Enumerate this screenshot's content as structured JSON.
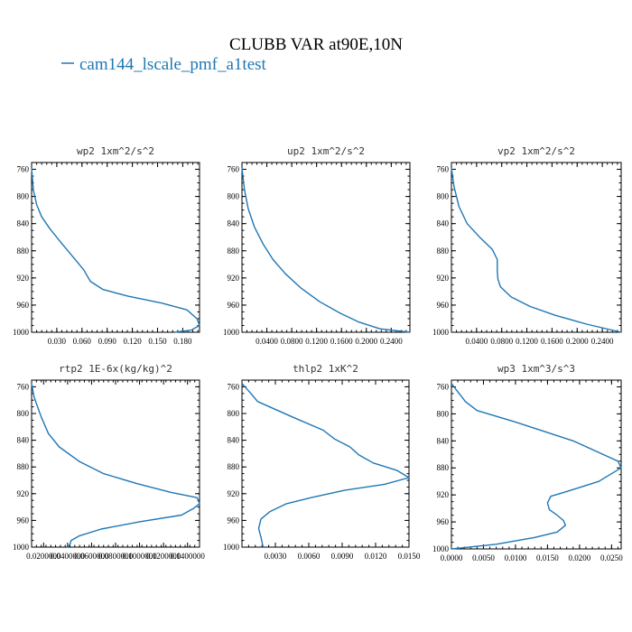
{
  "figure": {
    "title": "CLUBB VAR at90E,10N",
    "legend_label": "cam144_lscale_pmf_a1test",
    "line_color": "#1f77b4"
  },
  "chart_data": [
    {
      "type": "line",
      "title": "wp2  1xm^2/s^2",
      "xlim": [
        0,
        0.2
      ],
      "xticks": [
        0.03,
        0.06,
        0.09,
        0.12,
        0.15,
        0.18
      ],
      "xtick_labels": [
        "0.030",
        "0.060",
        "0.090",
        "0.120",
        "0.150",
        "0.180"
      ],
      "ylim": [
        1000,
        750
      ],
      "yticks": [
        760,
        800,
        840,
        880,
        920,
        960,
        1000
      ],
      "series": [
        {
          "name": "cam144_lscale_pmf_a1test",
          "x": [
            0.0,
            0.002,
            0.006,
            0.012,
            0.022,
            0.035,
            0.05,
            0.062,
            0.07,
            0.085,
            0.115,
            0.155,
            0.185,
            0.197,
            0.2,
            0.19,
            0.17
          ],
          "y": [
            758,
            790,
            812,
            830,
            848,
            868,
            890,
            908,
            925,
            937,
            947,
            957,
            967,
            980,
            990,
            997,
            1000
          ]
        }
      ]
    },
    {
      "type": "line",
      "title": "up2  1xm^2/s^2",
      "xlim": [
        0,
        0.27
      ],
      "xticks": [
        0.04,
        0.08,
        0.12,
        0.16,
        0.2,
        0.24
      ],
      "xtick_labels": [
        "0.0400",
        "0.0800",
        "0.1200",
        "0.1600",
        "0.2000",
        "0.2400"
      ],
      "ylim": [
        1000,
        750
      ],
      "yticks": [
        760,
        800,
        840,
        880,
        920,
        960,
        1000
      ],
      "series": [
        {
          "name": "cam144_lscale_pmf_a1test",
          "x": [
            0.0,
            0.004,
            0.01,
            0.02,
            0.034,
            0.05,
            0.07,
            0.095,
            0.125,
            0.158,
            0.188,
            0.222,
            0.27
          ],
          "y": [
            758,
            790,
            818,
            845,
            870,
            893,
            914,
            935,
            955,
            972,
            985,
            995,
            1000
          ]
        }
      ]
    },
    {
      "type": "line",
      "title": "vp2  1xm^2/s^2",
      "xlim": [
        0,
        0.27
      ],
      "xticks": [
        0.04,
        0.08,
        0.12,
        0.16,
        0.2,
        0.24
      ],
      "xtick_labels": [
        "0.0400",
        "0.0800",
        "0.1200",
        "0.1600",
        "0.2000",
        "0.2400"
      ],
      "ylim": [
        1000,
        750
      ],
      "yticks": [
        760,
        800,
        840,
        880,
        920,
        960,
        1000
      ],
      "series": [
        {
          "name": "cam144_lscale_pmf_a1test",
          "x": [
            0.0,
            0.004,
            0.012,
            0.025,
            0.045,
            0.065,
            0.073,
            0.073,
            0.074,
            0.078,
            0.095,
            0.125,
            0.165,
            0.215,
            0.27
          ],
          "y": [
            758,
            785,
            815,
            840,
            860,
            878,
            893,
            910,
            922,
            933,
            948,
            962,
            975,
            988,
            1000
          ]
        }
      ]
    },
    {
      "type": "line",
      "title": "rtp2  1E-6x(kg/kg)^2",
      "xlim": [
        0.01,
        0.15
      ],
      "xticks": [
        0.02,
        0.04,
        0.06,
        0.08,
        0.1,
        0.12,
        0.14
      ],
      "xtick_labels": [
        "0.0200000",
        "0.0400000",
        "0.0600000",
        "0.0800000",
        "0.1000000",
        "0.1200000",
        "0.1400000"
      ],
      "ylim": [
        1000,
        750
      ],
      "yticks": [
        760,
        800,
        840,
        880,
        920,
        960,
        1000
      ],
      "series": [
        {
          "name": "cam144_lscale_pmf_a1test",
          "x": [
            0.01,
            0.012,
            0.018,
            0.024,
            0.033,
            0.05,
            0.07,
            0.098,
            0.126,
            0.148,
            0.15,
            0.145,
            0.135,
            0.1,
            0.068,
            0.05,
            0.043,
            0.042,
            0.04
          ],
          "y": [
            755,
            775,
            805,
            830,
            850,
            872,
            890,
            905,
            918,
            926,
            935,
            942,
            952,
            962,
            973,
            983,
            990,
            996,
            1000
          ]
        }
      ]
    },
    {
      "type": "line",
      "title": "thlp2  1xK^2",
      "xlim": [
        0,
        0.015
      ],
      "xticks": [
        0.003,
        0.006,
        0.009,
        0.012,
        0.015
      ],
      "xtick_labels": [
        "0.0030",
        "0.0060",
        "0.0090",
        "0.0120",
        "0.0150"
      ],
      "ylim": [
        1000,
        750
      ],
      "yticks": [
        760,
        800,
        840,
        880,
        920,
        960,
        1000
      ],
      "series": [
        {
          "name": "cam144_lscale_pmf_a1test",
          "x": [
            0.0,
            0.0008,
            0.0014,
            0.0045,
            0.0073,
            0.0083,
            0.0097,
            0.0105,
            0.0118,
            0.0139,
            0.015,
            0.0128,
            0.0092,
            0.0062,
            0.004,
            0.0025,
            0.0017,
            0.0015,
            0.0017,
            0.0019
          ],
          "y": [
            755,
            770,
            782,
            805,
            825,
            838,
            850,
            862,
            874,
            885,
            896,
            906,
            915,
            926,
            935,
            947,
            958,
            972,
            985,
            1000
          ]
        }
      ]
    },
    {
      "type": "line",
      "title": "wp3  1xm^3/s^3",
      "xlim": [
        0,
        0.0265
      ],
      "xticks": [
        0.0,
        0.005,
        0.01,
        0.015,
        0.02,
        0.025
      ],
      "xtick_labels": [
        "0.0000",
        "0.0050",
        "0.0100",
        "0.0150",
        "0.0200",
        "0.0250"
      ],
      "ylim": [
        1000,
        750
      ],
      "yticks": [
        760,
        800,
        840,
        880,
        920,
        960,
        1000
      ],
      "series": [
        {
          "name": "cam144_lscale_pmf_a1test",
          "x": [
            0.0,
            0.0008,
            0.0022,
            0.004,
            0.01,
            0.019,
            0.026,
            0.0265,
            0.023,
            0.018,
            0.0155,
            0.015,
            0.0153,
            0.0165,
            0.0175,
            0.0178,
            0.0165,
            0.013,
            0.007,
            0.0
          ],
          "y": [
            755,
            765,
            782,
            795,
            812,
            840,
            870,
            880,
            900,
            915,
            922,
            932,
            942,
            950,
            958,
            965,
            975,
            983,
            993,
            1000
          ]
        }
      ]
    }
  ]
}
